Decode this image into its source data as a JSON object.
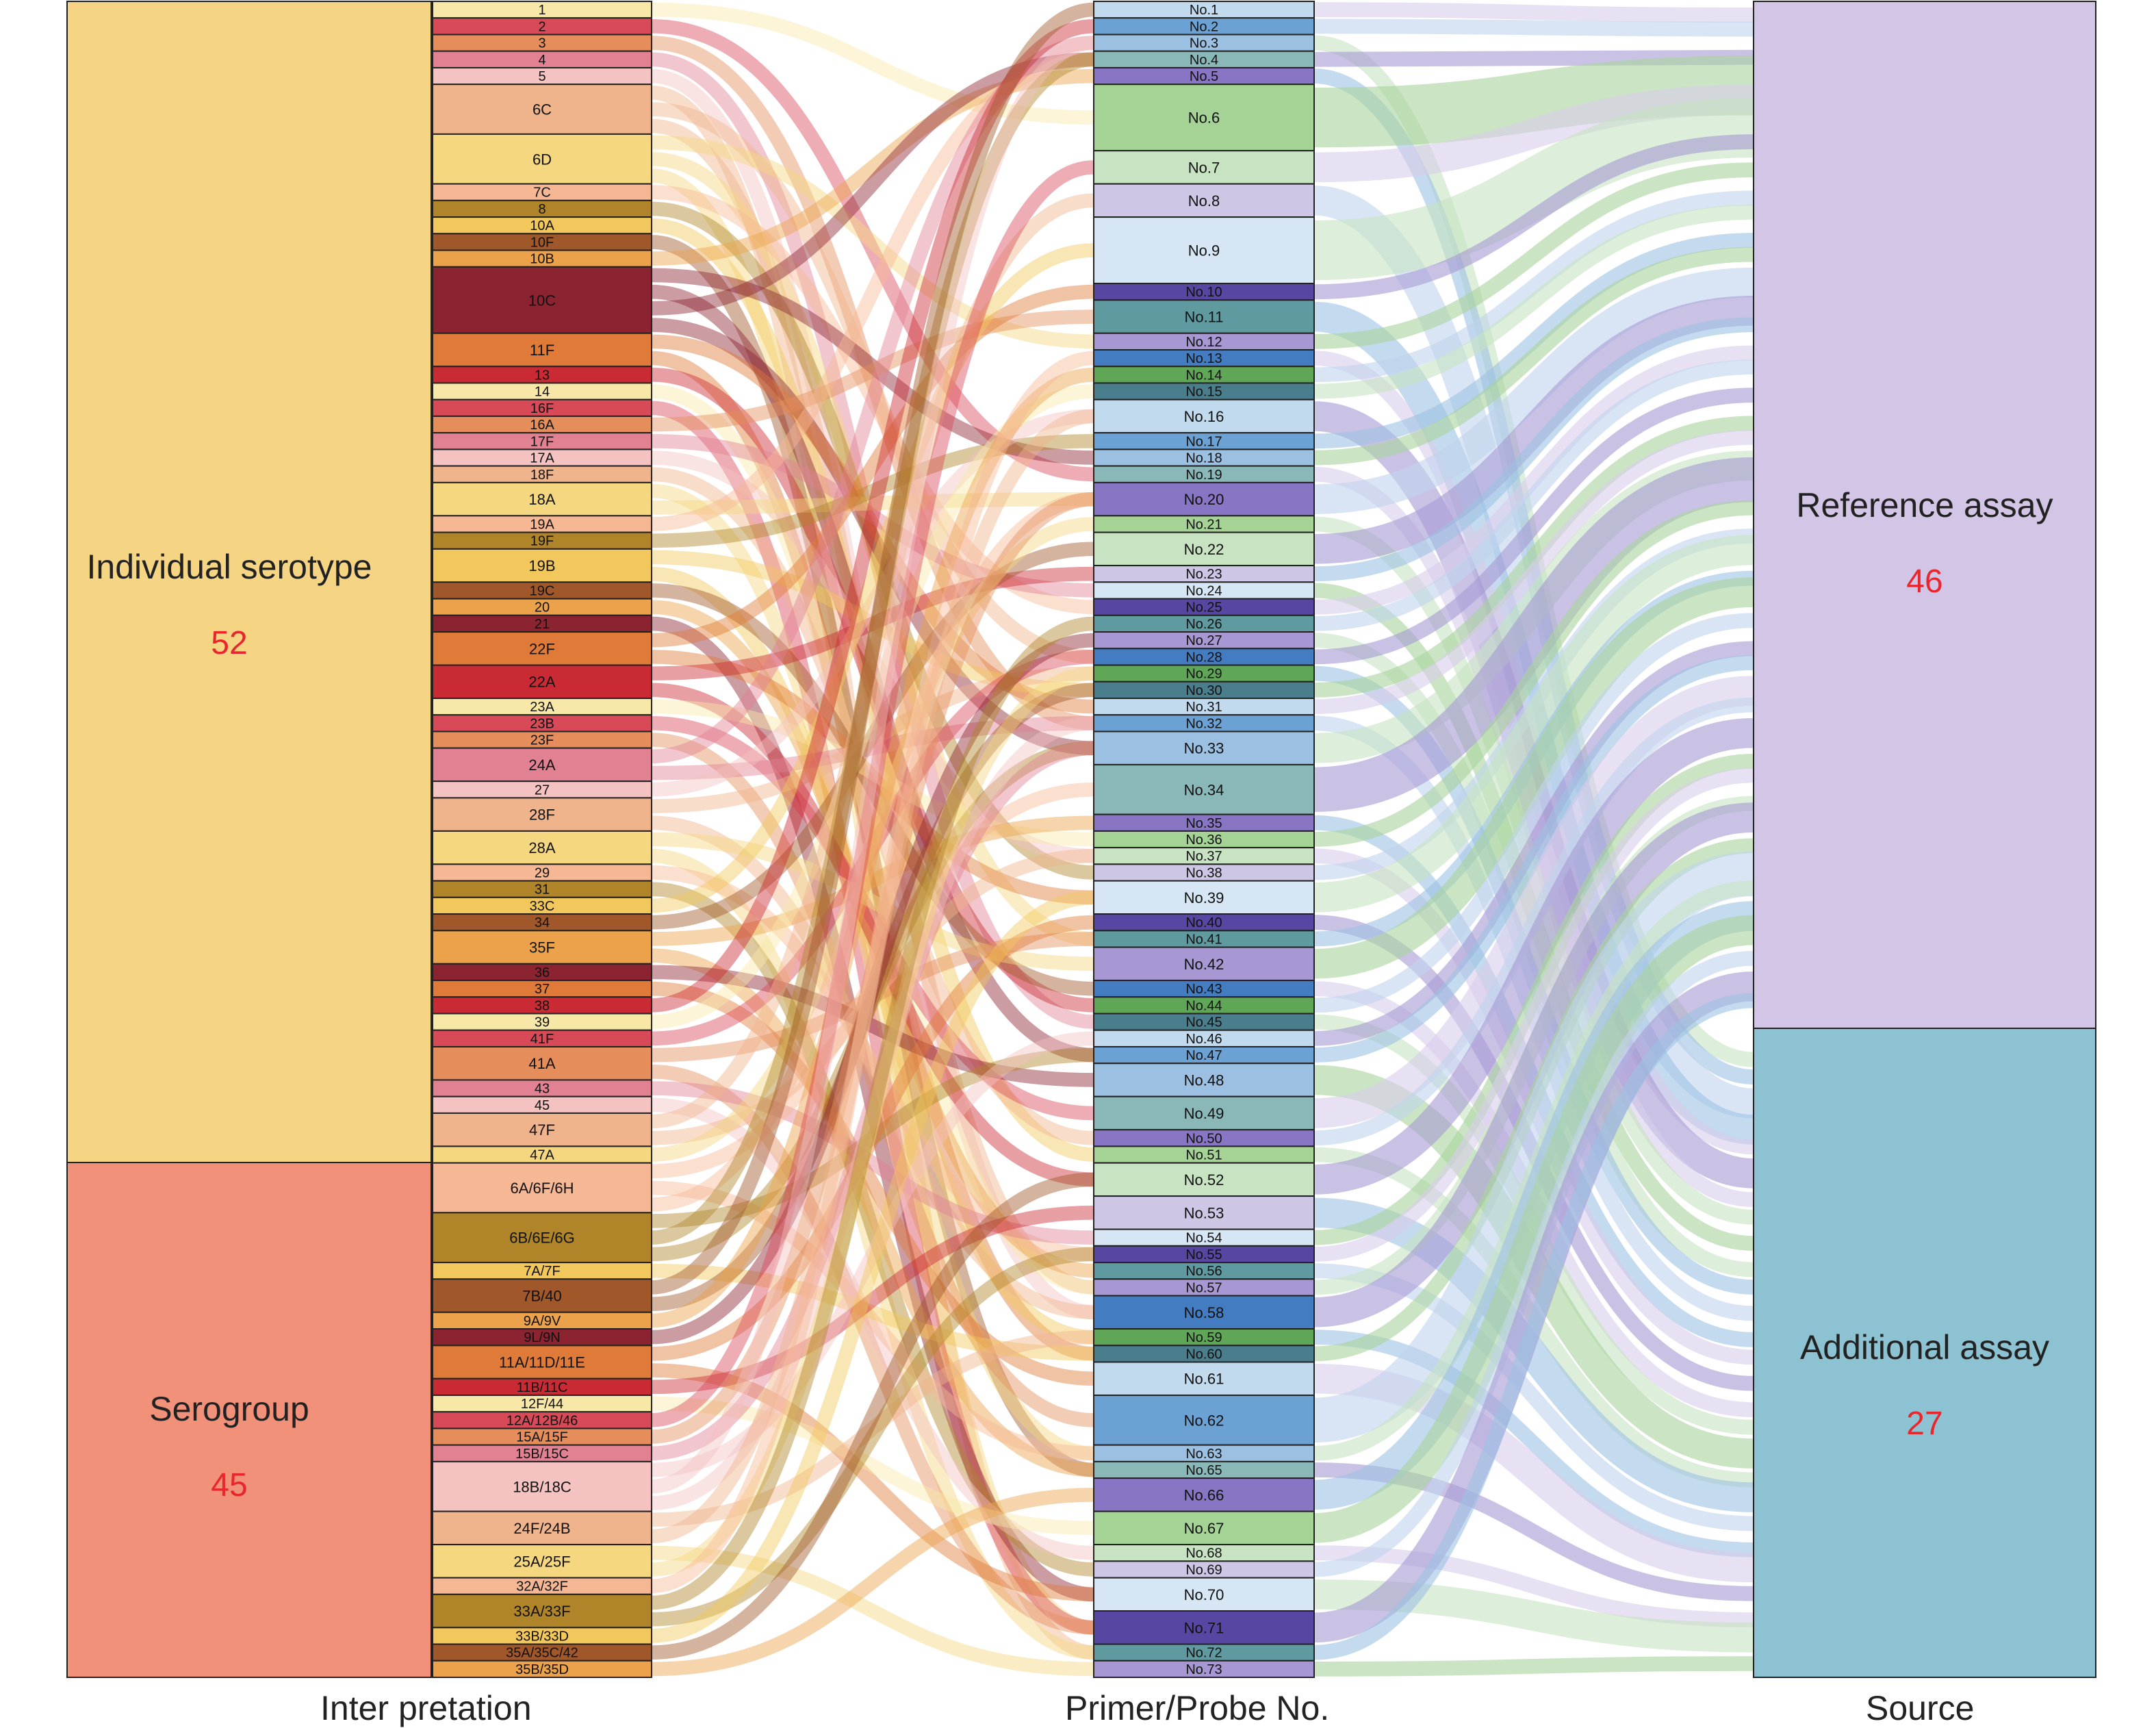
{
  "figure": {
    "axis_labels": [
      "Inter pretation",
      "Primer/Probe No.",
      "Source"
    ]
  },
  "groups": [
    {
      "label": "Individual serotype",
      "count": "52",
      "color": "#F5D584"
    },
    {
      "label": "Serogroup",
      "count": "45",
      "color": "#F2917A"
    }
  ],
  "sources": [
    {
      "label": "Reference assay",
      "count": "46",
      "color": "#D3C5E6"
    },
    {
      "label": "Additional assay",
      "count": "27",
      "color": "#8CC2D1"
    }
  ],
  "count_color": "#E8262B",
  "serotypes": [
    {
      "label": "1",
      "weight": 1
    },
    {
      "label": "2",
      "weight": 1
    },
    {
      "label": "3",
      "weight": 1
    },
    {
      "label": "4",
      "weight": 1
    },
    {
      "label": "5",
      "weight": 1
    },
    {
      "label": "6C",
      "weight": 3
    },
    {
      "label": "6D",
      "weight": 3
    },
    {
      "label": "7C",
      "weight": 1
    },
    {
      "label": "8",
      "weight": 1
    },
    {
      "label": "10A",
      "weight": 1
    },
    {
      "label": "10F",
      "weight": 1
    },
    {
      "label": "10B",
      "weight": 1
    },
    {
      "label": "10C",
      "weight": 4
    },
    {
      "label": "11F",
      "weight": 2
    },
    {
      "label": "13",
      "weight": 1
    },
    {
      "label": "14",
      "weight": 1
    },
    {
      "label": "16F",
      "weight": 1
    },
    {
      "label": "16A",
      "weight": 1
    },
    {
      "label": "17F",
      "weight": 1
    },
    {
      "label": "17A",
      "weight": 1
    },
    {
      "label": "18F",
      "weight": 1
    },
    {
      "label": "18A",
      "weight": 2
    },
    {
      "label": "19A",
      "weight": 1
    },
    {
      "label": "19F",
      "weight": 1
    },
    {
      "label": "19B",
      "weight": 2
    },
    {
      "label": "19C",
      "weight": 1
    },
    {
      "label": "20",
      "weight": 1
    },
    {
      "label": "21",
      "weight": 1
    },
    {
      "label": "22F",
      "weight": 2
    },
    {
      "label": "22A",
      "weight": 2
    },
    {
      "label": "23A",
      "weight": 1
    },
    {
      "label": "23B",
      "weight": 1
    },
    {
      "label": "23F",
      "weight": 1
    },
    {
      "label": "24A",
      "weight": 2
    },
    {
      "label": "27",
      "weight": 1
    },
    {
      "label": "28F",
      "weight": 2
    },
    {
      "label": "28A",
      "weight": 2
    },
    {
      "label": "29",
      "weight": 1
    },
    {
      "label": "31",
      "weight": 1
    },
    {
      "label": "33C",
      "weight": 1
    },
    {
      "label": "34",
      "weight": 1
    },
    {
      "label": "35F",
      "weight": 2
    },
    {
      "label": "36",
      "weight": 1
    },
    {
      "label": "37",
      "weight": 1
    },
    {
      "label": "38",
      "weight": 1
    },
    {
      "label": "39",
      "weight": 1
    },
    {
      "label": "41F",
      "weight": 1
    },
    {
      "label": "41A",
      "weight": 2
    },
    {
      "label": "43",
      "weight": 1
    },
    {
      "label": "45",
      "weight": 1
    },
    {
      "label": "47F",
      "weight": 2
    },
    {
      "label": "47A",
      "weight": 1
    },
    {
      "label": "6A/6F/6H",
      "weight": 3
    },
    {
      "label": "6B/6E/6G",
      "weight": 3
    },
    {
      "label": "7A/7F",
      "weight": 1
    },
    {
      "label": "7B/40",
      "weight": 2
    },
    {
      "label": "9A/9V",
      "weight": 1
    },
    {
      "label": "9L/9N",
      "weight": 1
    },
    {
      "label": "11A/11D/11E",
      "weight": 2
    },
    {
      "label": "11B/11C",
      "weight": 1
    },
    {
      "label": "12F/44",
      "weight": 1
    },
    {
      "label": "12A/12B/46",
      "weight": 1
    },
    {
      "label": "15A/15F",
      "weight": 1
    },
    {
      "label": "15B/15C",
      "weight": 1
    },
    {
      "label": "18B/18C",
      "weight": 3
    },
    {
      "label": "24F/24B",
      "weight": 2
    },
    {
      "label": "25A/25F",
      "weight": 2
    },
    {
      "label": "32A/32F",
      "weight": 1
    },
    {
      "label": "33A/33F",
      "weight": 2
    },
    {
      "label": "33B/33D",
      "weight": 1
    },
    {
      "label": "35A/35C/42",
      "weight": 1
    },
    {
      "label": "35B/35D",
      "weight": 1
    }
  ],
  "primers": [
    {
      "label": "No.1",
      "weight": 1
    },
    {
      "label": "No.2",
      "weight": 1
    },
    {
      "label": "No.3",
      "weight": 1
    },
    {
      "label": "No.4",
      "weight": 1
    },
    {
      "label": "No.5",
      "weight": 1
    },
    {
      "label": "No.6",
      "weight": 4
    },
    {
      "label": "No.7",
      "weight": 2
    },
    {
      "label": "No.8",
      "weight": 2
    },
    {
      "label": "No.9",
      "weight": 4
    },
    {
      "label": "No.10",
      "weight": 1
    },
    {
      "label": "No.11",
      "weight": 2
    },
    {
      "label": "No.12",
      "weight": 1
    },
    {
      "label": "No.13",
      "weight": 1
    },
    {
      "label": "No.14",
      "weight": 1
    },
    {
      "label": "No.15",
      "weight": 1
    },
    {
      "label": "No.16",
      "weight": 2
    },
    {
      "label": "No.17",
      "weight": 1
    },
    {
      "label": "No.18",
      "weight": 1
    },
    {
      "label": "No.19",
      "weight": 1
    },
    {
      "label": "No.20",
      "weight": 2
    },
    {
      "label": "No.21",
      "weight": 1
    },
    {
      "label": "No.22",
      "weight": 2
    },
    {
      "label": "No.23",
      "weight": 1
    },
    {
      "label": "No.24",
      "weight": 1
    },
    {
      "label": "No.25",
      "weight": 1
    },
    {
      "label": "No.26",
      "weight": 1
    },
    {
      "label": "No.27",
      "weight": 1
    },
    {
      "label": "No.28",
      "weight": 1
    },
    {
      "label": "No.29",
      "weight": 1
    },
    {
      "label": "No.30",
      "weight": 1
    },
    {
      "label": "No.31",
      "weight": 1
    },
    {
      "label": "No.32",
      "weight": 1
    },
    {
      "label": "No.33",
      "weight": 2
    },
    {
      "label": "No.34",
      "weight": 3
    },
    {
      "label": "No.35",
      "weight": 1
    },
    {
      "label": "No.36",
      "weight": 1
    },
    {
      "label": "No.37",
      "weight": 1
    },
    {
      "label": "No.38",
      "weight": 1
    },
    {
      "label": "No.39",
      "weight": 2
    },
    {
      "label": "No.40",
      "weight": 1
    },
    {
      "label": "No.41",
      "weight": 1
    },
    {
      "label": "No.42",
      "weight": 2
    },
    {
      "label": "No.43",
      "weight": 1
    },
    {
      "label": "No.44",
      "weight": 1
    },
    {
      "label": "No.45",
      "weight": 1
    },
    {
      "label": "No.46",
      "weight": 1
    },
    {
      "label": "No.47",
      "weight": 1
    },
    {
      "label": "No.48",
      "weight": 2
    },
    {
      "label": "No.49",
      "weight": 2
    },
    {
      "label": "No.50",
      "weight": 1
    },
    {
      "label": "No.51",
      "weight": 1
    },
    {
      "label": "No.52",
      "weight": 2
    },
    {
      "label": "No.53",
      "weight": 2
    },
    {
      "label": "No.54",
      "weight": 1
    },
    {
      "label": "No.55",
      "weight": 1
    },
    {
      "label": "No.56",
      "weight": 1
    },
    {
      "label": "No.57",
      "weight": 1
    },
    {
      "label": "No.58",
      "weight": 2
    },
    {
      "label": "No.59",
      "weight": 1
    },
    {
      "label": "No.60",
      "weight": 1
    },
    {
      "label": "No.61",
      "weight": 2
    },
    {
      "label": "No.62",
      "weight": 3
    },
    {
      "label": "No.63",
      "weight": 1
    },
    {
      "label": "No.65",
      "weight": 1
    },
    {
      "label": "No.66",
      "weight": 2
    },
    {
      "label": "No.67",
      "weight": 2
    },
    {
      "label": "No.68",
      "weight": 1
    },
    {
      "label": "No.69",
      "weight": 1
    },
    {
      "label": "No.70",
      "weight": 2
    },
    {
      "label": "No.71",
      "weight": 2
    },
    {
      "label": "No.72",
      "weight": 1
    },
    {
      "label": "No.73",
      "weight": 1
    }
  ],
  "serotype_palette": [
    "#F8E8A8",
    "#E07A38",
    "#EBA24A",
    "#F2C75C",
    "#F6B894",
    "#F0B48C",
    "#E18192",
    "#D94A58",
    "#C92A33",
    "#8B2330",
    "#A0572A",
    "#B08428",
    "#F4D77E",
    "#F4C2C0",
    "#E58E5C"
  ],
  "primer_palette": [
    "#C7E3C2",
    "#8875C4",
    "#9CC0E2",
    "#C2DAEE",
    "#60A657",
    "#A797D2",
    "#5847A2",
    "#CDC6E5",
    "#A4D395",
    "#8AB8B8",
    "#6CA1D4",
    "#4A7E8C",
    "#447CC2",
    "#5E9AA0",
    "#D6E6F4"
  ],
  "source_flow_colors": [
    "#D9CDEB",
    "#BFD3EC",
    "#C7E3C2",
    "#A79AD4",
    "#9DC1E3",
    "#A8D39D"
  ]
}
